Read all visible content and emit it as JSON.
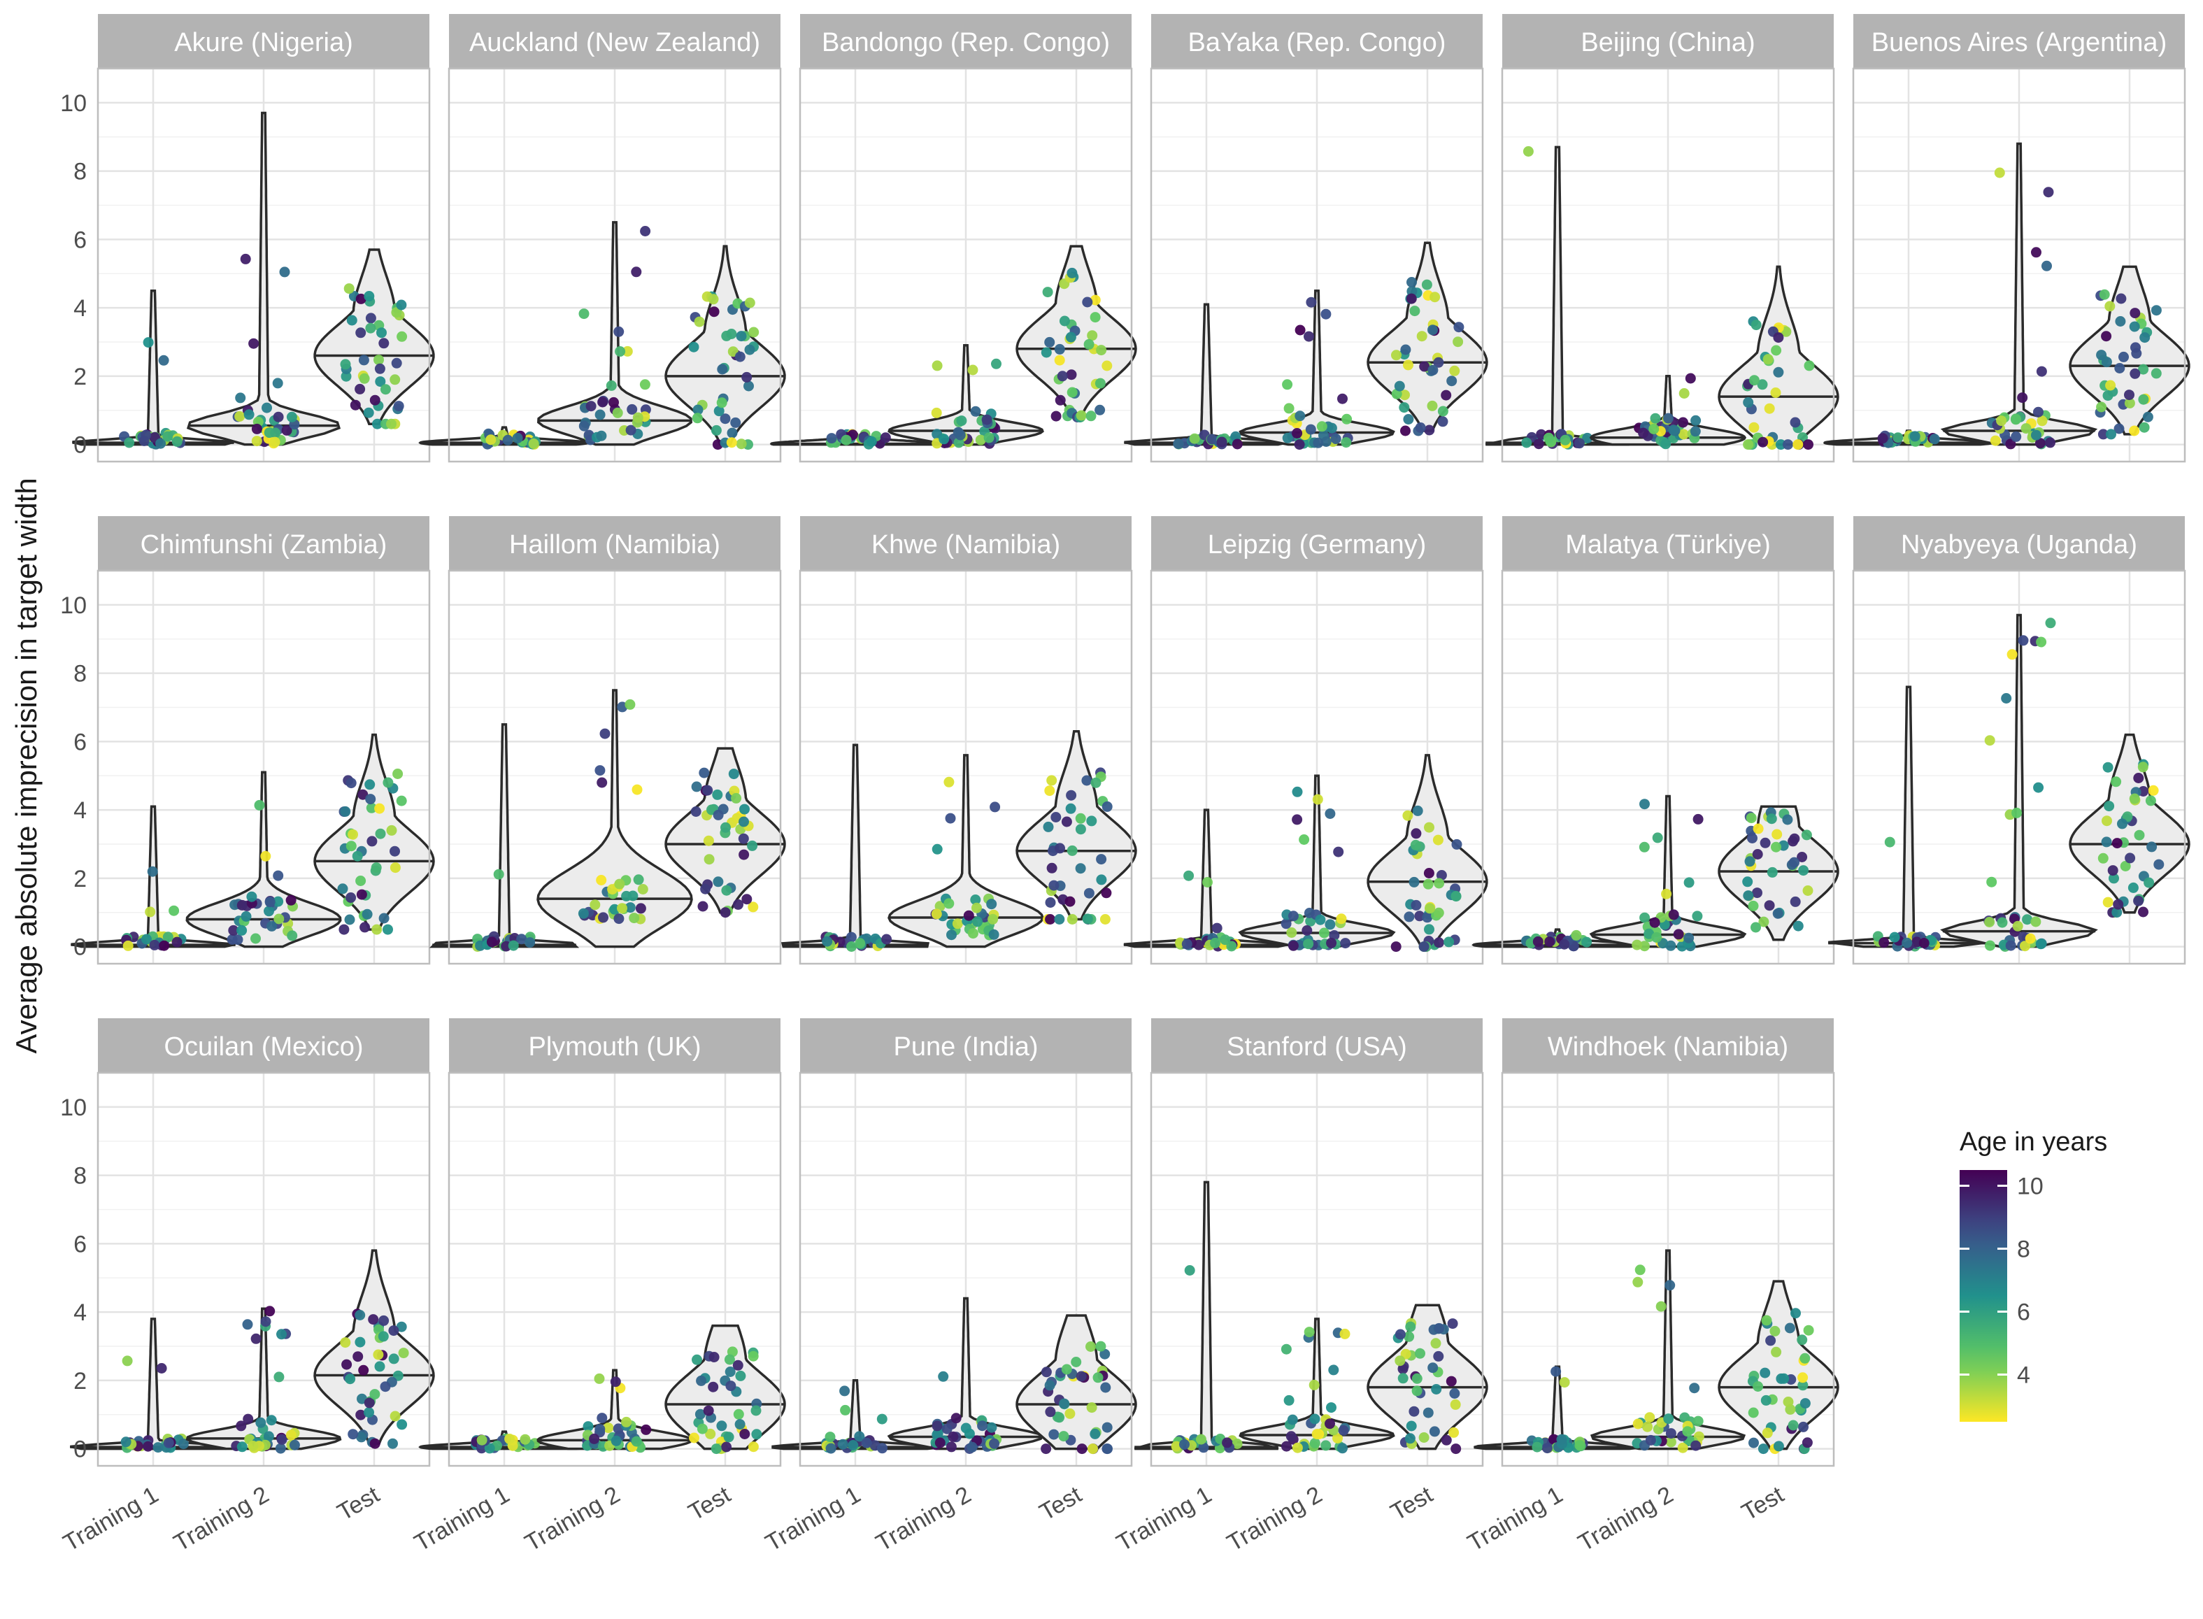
{
  "chart_data": {
    "type": "violin",
    "ylabel": "Average absolute imprecision in target width",
    "xlabel": "",
    "categories": [
      "Training 1",
      "Training 2",
      "Test"
    ],
    "yticks": [
      0,
      2,
      4,
      6,
      8,
      10
    ],
    "ylim": [
      -0.5,
      11
    ],
    "legend": {
      "title": "Age in years",
      "ticks": [
        4,
        6,
        8,
        10
      ],
      "range": [
        2.5,
        10.5
      ],
      "colorscale": "viridis (reversed: yellow = young, purple = old)",
      "placement": "right"
    },
    "grid": true,
    "facets": [
      {
        "label": "Akure (Nigeria)",
        "medians": [
          0.05,
          0.55,
          2.6
        ],
        "maxima": [
          4.5,
          9.7,
          5.7
        ]
      },
      {
        "label": "Auckland (New Zealand)",
        "medians": [
          0.05,
          0.7,
          2.0
        ],
        "maxima": [
          0.5,
          6.5,
          5.8
        ]
      },
      {
        "label": "Bandongo (Rep. Congo)",
        "medians": [
          0.02,
          0.4,
          2.8
        ],
        "maxima": [
          0.3,
          2.9,
          5.8
        ]
      },
      {
        "label": "BaYaka (Rep. Congo)",
        "medians": [
          0.05,
          0.35,
          2.4
        ],
        "maxima": [
          4.1,
          4.5,
          5.9
        ]
      },
      {
        "label": "Beijing (China)",
        "medians": [
          0.05,
          0.2,
          1.4
        ],
        "maxima": [
          8.7,
          2.0,
          5.2
        ]
      },
      {
        "label": "Buenos Aires (Argentina)",
        "medians": [
          0.05,
          0.4,
          2.3
        ],
        "maxima": [
          0.4,
          8.8,
          5.2
        ]
      },
      {
        "label": "Chimfunshi (Zambia)",
        "medians": [
          0.05,
          0.8,
          2.5
        ],
        "maxima": [
          4.1,
          5.1,
          6.2
        ]
      },
      {
        "label": "Haillom (Namibia)",
        "medians": [
          0.05,
          1.4,
          3.0
        ],
        "maxima": [
          6.5,
          7.5,
          5.8
        ]
      },
      {
        "label": "Khwe (Namibia)",
        "medians": [
          0.05,
          0.85,
          2.8
        ],
        "maxima": [
          5.9,
          5.6,
          6.3
        ]
      },
      {
        "label": "Leipzig (Germany)",
        "medians": [
          0.05,
          0.4,
          1.9
        ],
        "maxima": [
          4.0,
          5.0,
          5.6
        ]
      },
      {
        "label": "Malatya (Türkiye)",
        "medians": [
          0.05,
          0.35,
          2.2
        ],
        "maxima": [
          0.5,
          4.4,
          4.1
        ]
      },
      {
        "label": "Nyabyeya (Uganda)",
        "medians": [
          0.1,
          0.45,
          3.0
        ],
        "maxima": [
          7.6,
          9.7,
          6.2
        ]
      },
      {
        "label": "Ocuilan (Mexico)",
        "medians": [
          0.05,
          0.3,
          2.15
        ],
        "maxima": [
          3.8,
          4.1,
          5.8
        ]
      },
      {
        "label": "Plymouth (UK)",
        "medians": [
          0.05,
          0.25,
          1.3
        ],
        "maxima": [
          0.5,
          2.3,
          3.6
        ]
      },
      {
        "label": "Pune (India)",
        "medians": [
          0.05,
          0.35,
          1.3
        ],
        "maxima": [
          2.0,
          4.4,
          3.9
        ]
      },
      {
        "label": "Stanford (USA)",
        "medians": [
          0.05,
          0.4,
          1.8
        ],
        "maxima": [
          7.8,
          3.8,
          4.2
        ]
      },
      {
        "label": "Windhoek (Namibia)",
        "medians": [
          0.05,
          0.35,
          1.8
        ],
        "maxima": [
          2.4,
          5.8,
          4.9
        ]
      }
    ]
  }
}
